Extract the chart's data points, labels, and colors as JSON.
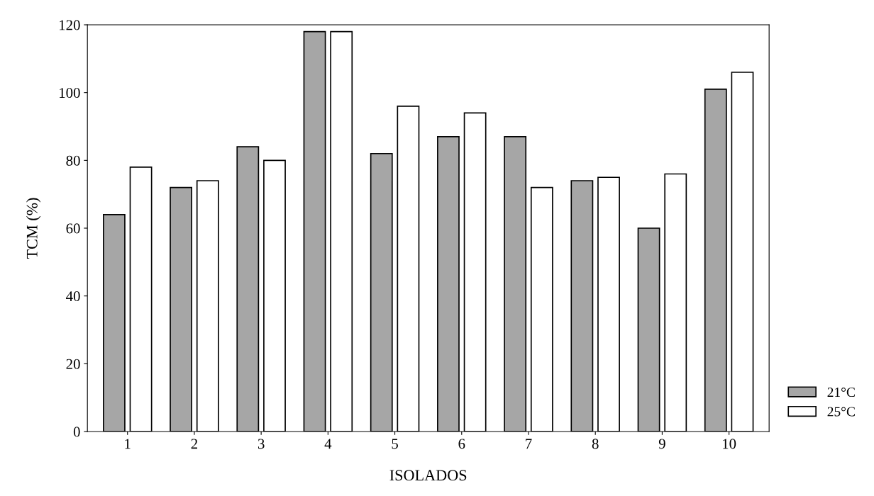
{
  "chart_data": {
    "type": "bar",
    "xlabel": "ISOLADOS",
    "ylabel": "TCM (%)",
    "categories": [
      "1",
      "2",
      "3",
      "4",
      "5",
      "6",
      "7",
      "8",
      "9",
      "10"
    ],
    "series": [
      {
        "name": "21°C",
        "color": "#a6a6a6",
        "values": [
          64,
          72,
          84,
          118,
          82,
          87,
          87,
          74,
          60,
          101
        ]
      },
      {
        "name": "25°C",
        "color": "#ffffff",
        "values": [
          78,
          74,
          80,
          118,
          96,
          94,
          72,
          75,
          76,
          106
        ]
      }
    ],
    "ylim": [
      0,
      120
    ],
    "yticks": [
      0,
      20,
      40,
      60,
      80,
      100,
      120
    ],
    "grid": false,
    "legend": "right"
  }
}
